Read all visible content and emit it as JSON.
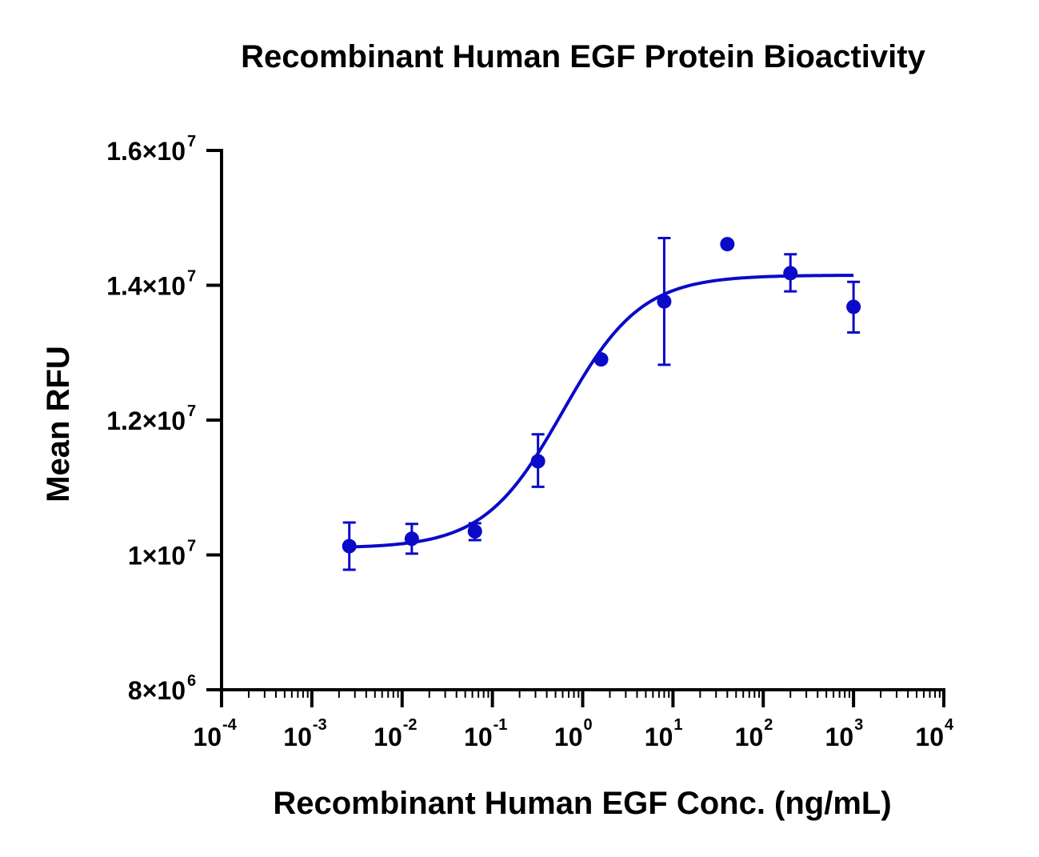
{
  "chart_data": {
    "type": "scatter",
    "title": "Recombinant Human EGF Protein Bioactivity",
    "xlabel": "Recombinant Human EGF Conc. (ng/mL)",
    "ylabel": "Mean RFU",
    "x_scale": "log",
    "xlim": [
      0.0001,
      10000
    ],
    "ylim": [
      8000000,
      16000000
    ],
    "x_ticks": [
      {
        "base": "10",
        "exp": "-4"
      },
      {
        "base": "10",
        "exp": "-3"
      },
      {
        "base": "10",
        "exp": "-2"
      },
      {
        "base": "10",
        "exp": "-1"
      },
      {
        "base": "10",
        "exp": "0"
      },
      {
        "base": "10",
        "exp": "1"
      },
      {
        "base": "10",
        "exp": "2"
      },
      {
        "base": "10",
        "exp": "3"
      },
      {
        "base": "10",
        "exp": "4"
      }
    ],
    "y_ticks": [
      {
        "value": 8000000,
        "mant": "8×10",
        "exp": "6"
      },
      {
        "value": 10000000,
        "mant": "1×10",
        "exp": "7"
      },
      {
        "value": 12000000,
        "mant": "1.2×10",
        "exp": "7"
      },
      {
        "value": 14000000,
        "mant": "1.4×10",
        "exp": "7"
      },
      {
        "value": 16000000,
        "mant": "1.6×10",
        "exp": "7"
      }
    ],
    "points": [
      {
        "x": 0.0026,
        "y": 10130000,
        "err_low": 9780000,
        "err_high": 10480000
      },
      {
        "x": 0.0128,
        "y": 10240000,
        "err_low": 10020000,
        "err_high": 10460000
      },
      {
        "x": 0.064,
        "y": 10350000,
        "err_low": 10220000,
        "err_high": 10470000
      },
      {
        "x": 0.32,
        "y": 11390000,
        "err_low": 11010000,
        "err_high": 11790000
      },
      {
        "x": 1.6,
        "y": 12900000,
        "err_low": 12900000,
        "err_high": 12900000
      },
      {
        "x": 8,
        "y": 13760000,
        "err_low": 12820000,
        "err_high": 14700000
      },
      {
        "x": 40,
        "y": 14610000,
        "err_low": 14610000,
        "err_high": 14610000
      },
      {
        "x": 200,
        "y": 14180000,
        "err_low": 13910000,
        "err_high": 14460000
      },
      {
        "x": 1000,
        "y": 13680000,
        "err_low": 13300000,
        "err_high": 14050000
      }
    ],
    "fit_curve": {
      "model": "4PL",
      "bottom": 10100000,
      "top": 14150000,
      "ec50": 0.6,
      "hill": 1.0,
      "x_range": [
        0.0026,
        1000
      ]
    },
    "color": "#0a0ac8",
    "grid": false,
    "legend": "none"
  }
}
